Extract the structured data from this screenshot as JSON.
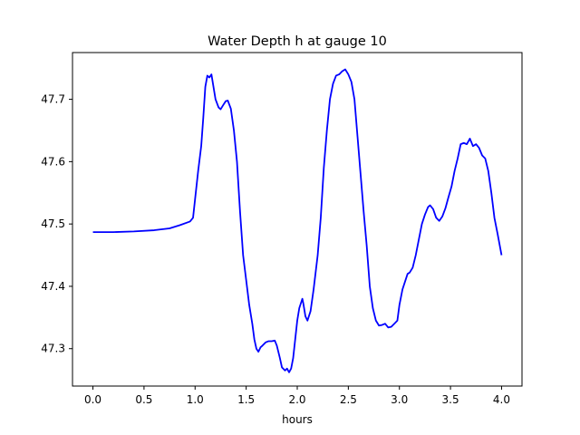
{
  "chart_data": {
    "type": "line",
    "title": "Water Depth h at gauge 10",
    "xlabel": "hours",
    "ylabel": "",
    "xlim": [
      -0.2,
      4.2
    ],
    "ylim": [
      47.24,
      47.775
    ],
    "grid": false,
    "legend": "none",
    "x_ticks": [
      {
        "value": 0.0,
        "label": "0.0"
      },
      {
        "value": 0.5,
        "label": "0.5"
      },
      {
        "value": 1.0,
        "label": "1.0"
      },
      {
        "value": 1.5,
        "label": "1.5"
      },
      {
        "value": 2.0,
        "label": "2.0"
      },
      {
        "value": 2.5,
        "label": "2.5"
      },
      {
        "value": 3.0,
        "label": "3.0"
      },
      {
        "value": 3.5,
        "label": "3.5"
      },
      {
        "value": 4.0,
        "label": "4.0"
      }
    ],
    "y_ticks": [
      {
        "value": 47.3,
        "label": "47.3"
      },
      {
        "value": 47.4,
        "label": "47.4"
      },
      {
        "value": 47.5,
        "label": "47.5"
      },
      {
        "value": 47.6,
        "label": "47.6"
      },
      {
        "value": 47.7,
        "label": "47.7"
      }
    ],
    "series": [
      {
        "color": "#0000ff",
        "points": [
          [
            0.0,
            47.487
          ],
          [
            0.2,
            47.487
          ],
          [
            0.4,
            47.488
          ],
          [
            0.6,
            47.49
          ],
          [
            0.75,
            47.493
          ],
          [
            0.85,
            47.498
          ],
          [
            0.95,
            47.504
          ],
          [
            0.98,
            47.51
          ],
          [
            1.0,
            47.54
          ],
          [
            1.03,
            47.585
          ],
          [
            1.06,
            47.625
          ],
          [
            1.08,
            47.67
          ],
          [
            1.1,
            47.72
          ],
          [
            1.12,
            47.738
          ],
          [
            1.14,
            47.735
          ],
          [
            1.16,
            47.74
          ],
          [
            1.18,
            47.72
          ],
          [
            1.2,
            47.7
          ],
          [
            1.23,
            47.687
          ],
          [
            1.25,
            47.684
          ],
          [
            1.28,
            47.692
          ],
          [
            1.3,
            47.697
          ],
          [
            1.32,
            47.698
          ],
          [
            1.35,
            47.685
          ],
          [
            1.38,
            47.65
          ],
          [
            1.41,
            47.6
          ],
          [
            1.44,
            47.52
          ],
          [
            1.47,
            47.45
          ],
          [
            1.5,
            47.41
          ],
          [
            1.53,
            47.37
          ],
          [
            1.56,
            47.34
          ],
          [
            1.58,
            47.315
          ],
          [
            1.6,
            47.3
          ],
          [
            1.62,
            47.295
          ],
          [
            1.64,
            47.302
          ],
          [
            1.66,
            47.305
          ],
          [
            1.69,
            47.31
          ],
          [
            1.72,
            47.312
          ],
          [
            1.75,
            47.312
          ],
          [
            1.78,
            47.313
          ],
          [
            1.8,
            47.305
          ],
          [
            1.83,
            47.285
          ],
          [
            1.85,
            47.27
          ],
          [
            1.88,
            47.265
          ],
          [
            1.9,
            47.268
          ],
          [
            1.92,
            47.262
          ],
          [
            1.94,
            47.268
          ],
          [
            1.96,
            47.285
          ],
          [
            1.98,
            47.315
          ],
          [
            2.0,
            47.345
          ],
          [
            2.02,
            47.365
          ],
          [
            2.04,
            47.375
          ],
          [
            2.05,
            47.38
          ],
          [
            2.06,
            47.372
          ],
          [
            2.08,
            47.352
          ],
          [
            2.1,
            47.345
          ],
          [
            2.13,
            47.36
          ],
          [
            2.16,
            47.395
          ],
          [
            2.2,
            47.45
          ],
          [
            2.23,
            47.51
          ],
          [
            2.26,
            47.59
          ],
          [
            2.29,
            47.65
          ],
          [
            2.32,
            47.7
          ],
          [
            2.35,
            47.725
          ],
          [
            2.38,
            47.738
          ],
          [
            2.41,
            47.74
          ],
          [
            2.44,
            47.745
          ],
          [
            2.47,
            47.748
          ],
          [
            2.5,
            47.74
          ],
          [
            2.53,
            47.728
          ],
          [
            2.56,
            47.7
          ],
          [
            2.59,
            47.64
          ],
          [
            2.62,
            47.58
          ],
          [
            2.65,
            47.52
          ],
          [
            2.68,
            47.465
          ],
          [
            2.71,
            47.4
          ],
          [
            2.74,
            47.365
          ],
          [
            2.77,
            47.345
          ],
          [
            2.8,
            47.337
          ],
          [
            2.83,
            47.338
          ],
          [
            2.86,
            47.34
          ],
          [
            2.89,
            47.334
          ],
          [
            2.92,
            47.335
          ],
          [
            2.95,
            47.34
          ],
          [
            2.98,
            47.345
          ],
          [
            3.0,
            47.37
          ],
          [
            3.03,
            47.395
          ],
          [
            3.06,
            47.41
          ],
          [
            3.08,
            47.42
          ],
          [
            3.1,
            47.422
          ],
          [
            3.13,
            47.43
          ],
          [
            3.16,
            47.45
          ],
          [
            3.19,
            47.475
          ],
          [
            3.22,
            47.5
          ],
          [
            3.25,
            47.515
          ],
          [
            3.28,
            47.527
          ],
          [
            3.3,
            47.53
          ],
          [
            3.33,
            47.524
          ],
          [
            3.36,
            47.51
          ],
          [
            3.39,
            47.505
          ],
          [
            3.42,
            47.512
          ],
          [
            3.45,
            47.525
          ],
          [
            3.48,
            47.543
          ],
          [
            3.51,
            47.56
          ],
          [
            3.54,
            47.585
          ],
          [
            3.57,
            47.605
          ],
          [
            3.6,
            47.628
          ],
          [
            3.63,
            47.63
          ],
          [
            3.66,
            47.628
          ],
          [
            3.69,
            47.637
          ],
          [
            3.72,
            47.625
          ],
          [
            3.75,
            47.628
          ],
          [
            3.78,
            47.622
          ],
          [
            3.81,
            47.61
          ],
          [
            3.84,
            47.605
          ],
          [
            3.87,
            47.585
          ],
          [
            3.9,
            47.55
          ],
          [
            3.93,
            47.51
          ],
          [
            3.96,
            47.485
          ],
          [
            4.0,
            47.45
          ]
        ]
      }
    ]
  }
}
